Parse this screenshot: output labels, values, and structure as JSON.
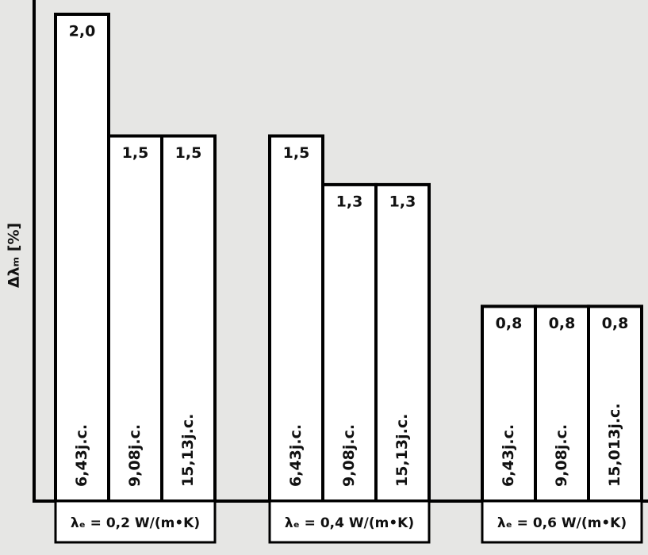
{
  "chart_data": {
    "type": "bar",
    "y_label": "Δλₘ [%]",
    "ylim": [
      0,
      2.0
    ],
    "groups": [
      {
        "label": "λₑ = 0,2 W/(m•K)",
        "bars": [
          {
            "label": "6,43j.c.",
            "value": 2.0,
            "value_label": "2,0"
          },
          {
            "label": "9,08j.c.",
            "value": 1.5,
            "value_label": "1,5"
          },
          {
            "label": "15,13j.c.",
            "value": 1.5,
            "value_label": "1,5"
          }
        ]
      },
      {
        "label": "λₑ = 0,4 W/(m•K)",
        "bars": [
          {
            "label": "6,43j.c.",
            "value": 1.5,
            "value_label": "1,5"
          },
          {
            "label": "9,08j.c.",
            "value": 1.3,
            "value_label": "1,3"
          },
          {
            "label": "15,13j.c.",
            "value": 1.3,
            "value_label": "1,3"
          }
        ]
      },
      {
        "label": "λₑ = 0,6 W/(m•K)",
        "bars": [
          {
            "label": "6,43j.c.",
            "value": 0.8,
            "value_label": "0,8"
          },
          {
            "label": "9,08j.c.",
            "value": 0.8,
            "value_label": "0,8"
          },
          {
            "label": "15,013j.c.",
            "value": 0.8,
            "value_label": "0,8"
          }
        ]
      }
    ]
  }
}
